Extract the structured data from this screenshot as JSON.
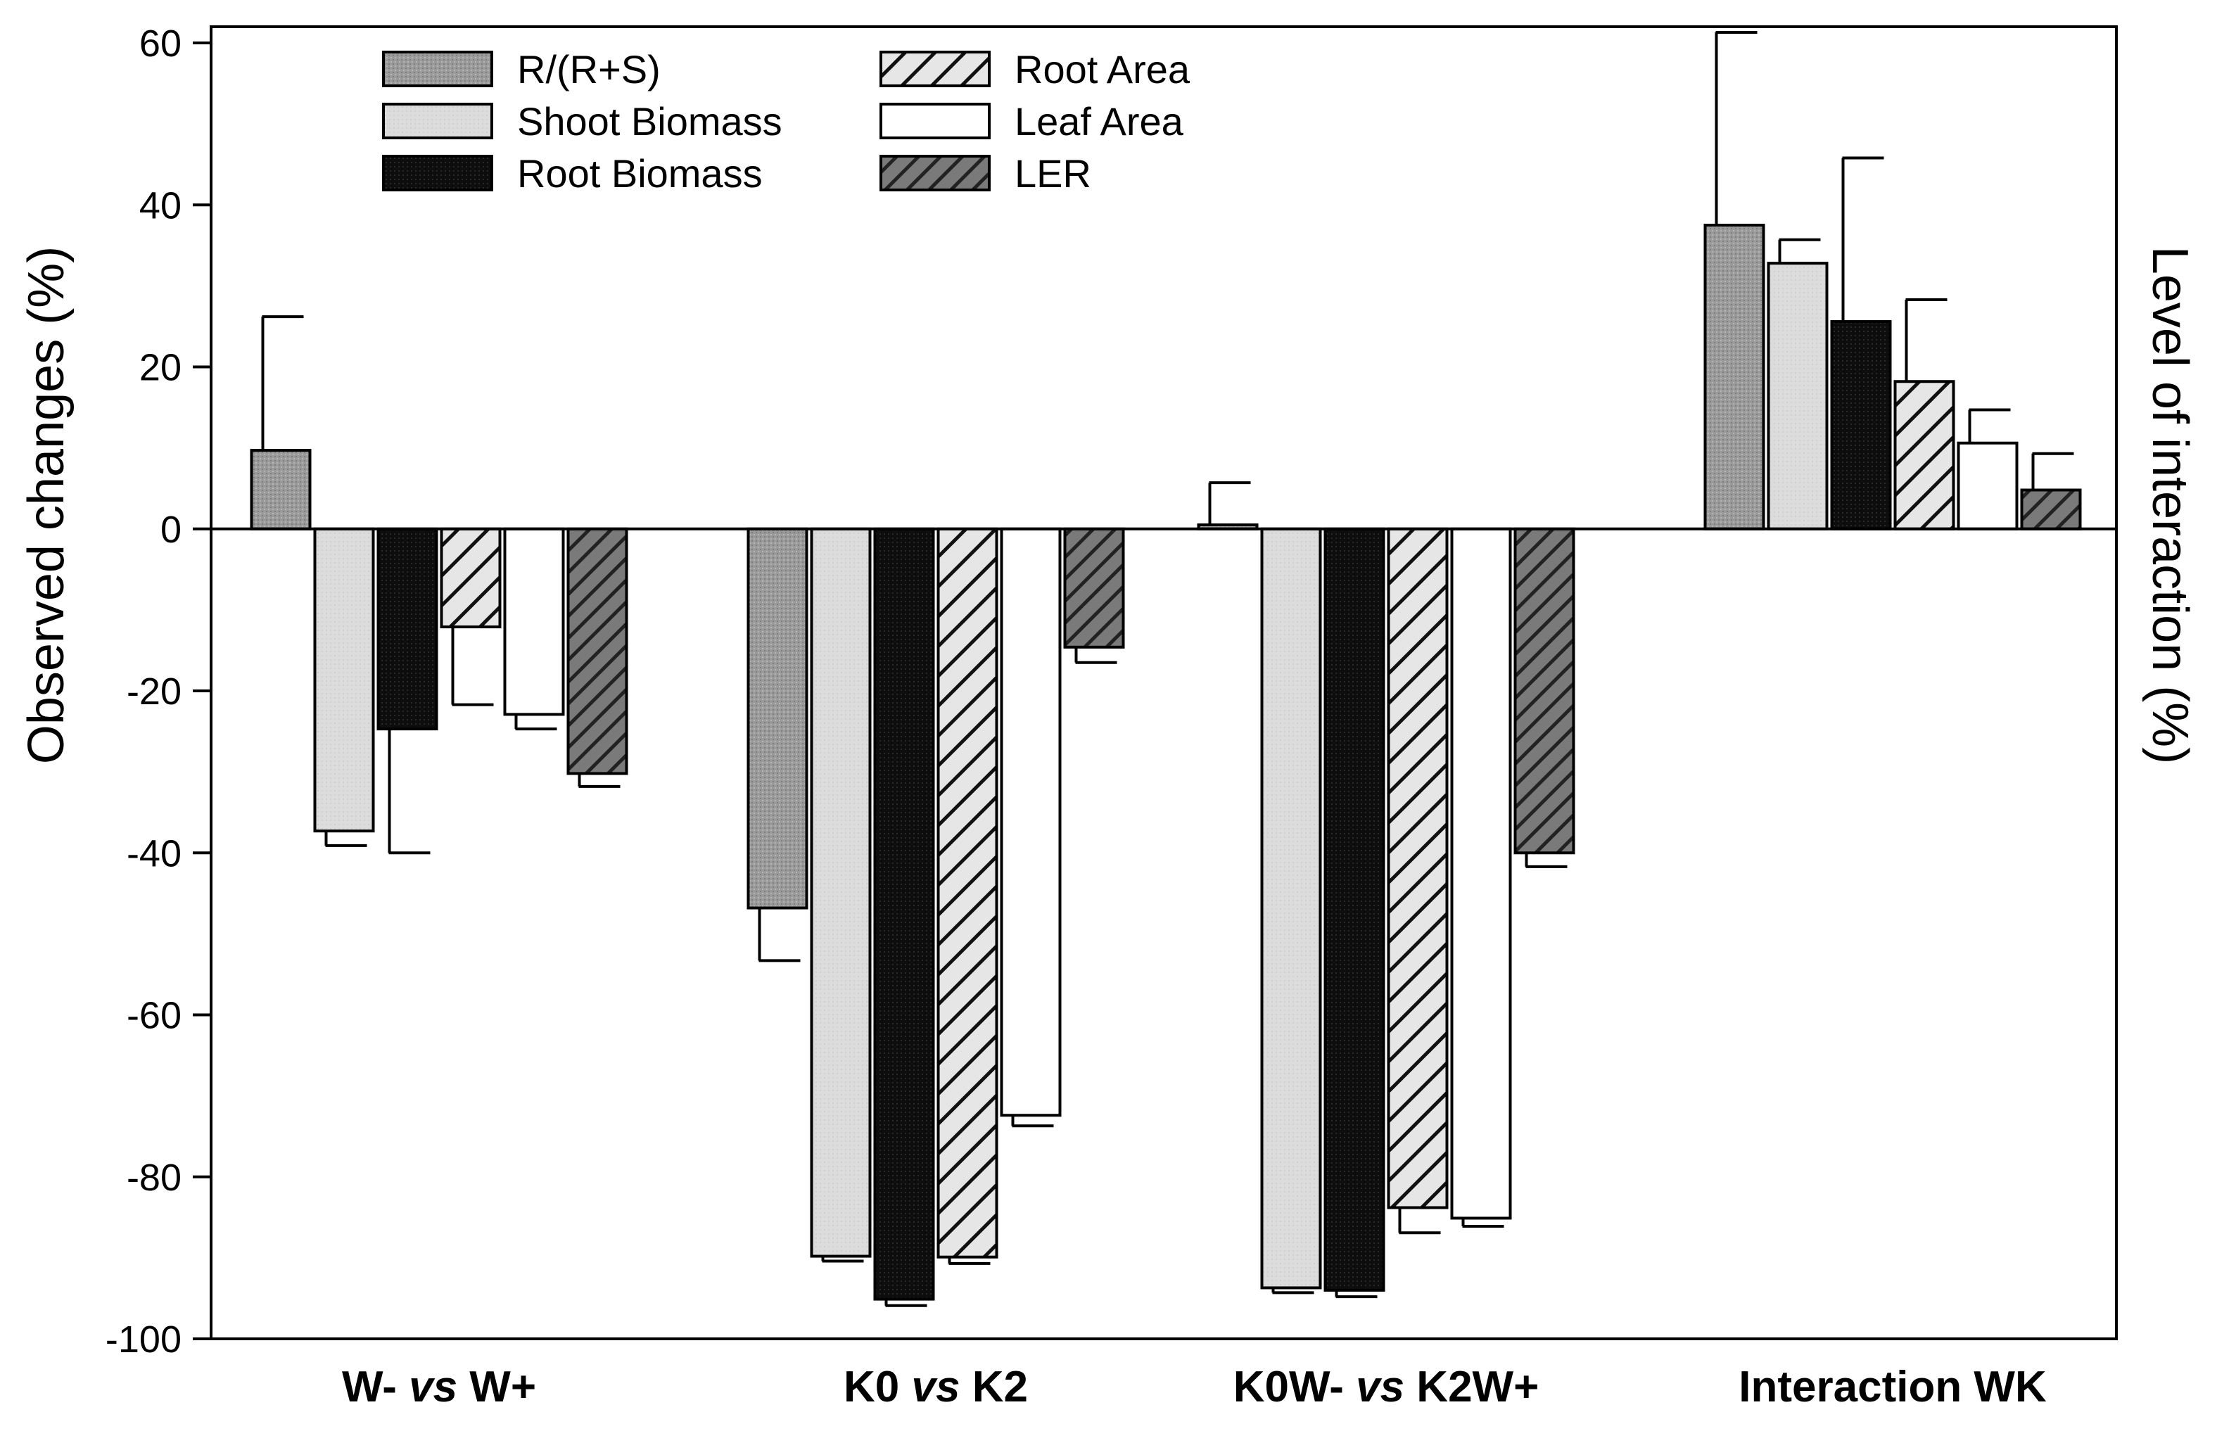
{
  "chart_data": {
    "type": "bar",
    "title": "",
    "xlabel": "",
    "ylabel": "Observed changes (%)",
    "y2label": "Level of interaction (%)",
    "ylim": [
      -100,
      62
    ],
    "yticks": [
      60,
      40,
      20,
      0,
      -20,
      -40,
      -60,
      -80,
      -100
    ],
    "grid": false,
    "legend_position": "top-left",
    "categories": [
      {
        "parts": [
          {
            "text": "W- ",
            "italic": false
          },
          {
            "text": "vs",
            "italic": true
          },
          {
            "text": " W+",
            "italic": false
          }
        ]
      },
      {
        "parts": [
          {
            "text": "K0 ",
            "italic": false
          },
          {
            "text": "vs",
            "italic": true
          },
          {
            "text": " K2",
            "italic": false
          }
        ]
      },
      {
        "parts": [
          {
            "text": "K0W- ",
            "italic": false
          },
          {
            "text": "vs",
            "italic": true
          },
          {
            "text": " K2W+",
            "italic": false
          }
        ]
      },
      {
        "parts": [
          {
            "text": "Interaction WK",
            "italic": false
          }
        ]
      }
    ],
    "series": [
      {
        "name": "R/(R+S)",
        "style": "dotted-gray",
        "values": [
          9.7,
          -46.8,
          0.5,
          37.5
        ],
        "errors": [
          16.5,
          6.5,
          5.2,
          23.8
        ]
      },
      {
        "name": "Shoot Biomass",
        "style": "light-gray",
        "values": [
          -37.3,
          -89.8,
          -93.7,
          32.8
        ],
        "errors": [
          1.8,
          0.6,
          0.6,
          2.9
        ]
      },
      {
        "name": "Root Biomass",
        "style": "black",
        "values": [
          -24.7,
          -95.1,
          -94.0,
          25.6
        ],
        "errors": [
          15.3,
          0.8,
          0.8,
          20.2
        ]
      },
      {
        "name": "Root Area",
        "style": "hatch-light",
        "values": [
          -12.1,
          -89.9,
          -83.8,
          18.2
        ],
        "errors": [
          9.6,
          0.8,
          3.1,
          10.1
        ]
      },
      {
        "name": "Leaf Area",
        "style": "white",
        "values": [
          -22.9,
          -72.4,
          -85.1,
          10.6
        ],
        "errors": [
          1.8,
          1.3,
          1.0,
          4.1
        ]
      },
      {
        "name": "LER",
        "style": "hatch-dark",
        "values": [
          -30.2,
          -14.6,
          -40.0,
          4.8
        ],
        "errors": [
          1.6,
          1.9,
          1.7,
          4.5
        ]
      }
    ],
    "legend_order": [
      0,
      1,
      2,
      3,
      4,
      5
    ]
  }
}
